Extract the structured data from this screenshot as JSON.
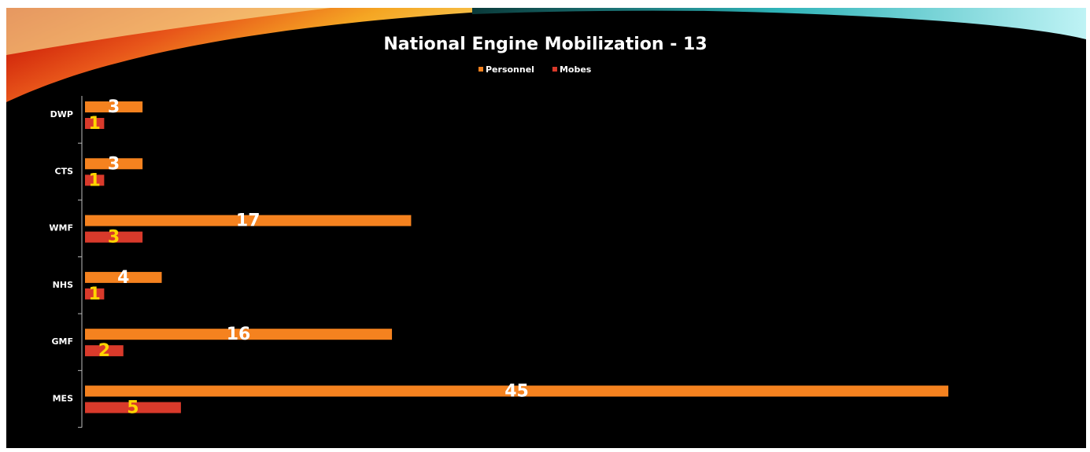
{
  "chart_data": {
    "type": "bar",
    "orientation": "horizontal",
    "title": "National Engine Mobilization - 13",
    "categories": [
      "DWP",
      "CTS",
      "WMF",
      "NHS",
      "GMF",
      "MES"
    ],
    "series": [
      {
        "name": "Personnel",
        "color": "#f5821f",
        "label_color": "#ffffff",
        "values": [
          3,
          3,
          17,
          4,
          16,
          45
        ]
      },
      {
        "name": "Mobes",
        "color": "#d93a2b",
        "label_color": "#ffd500",
        "values": [
          1,
          1,
          3,
          1,
          2,
          5
        ]
      }
    ],
    "legend": "top"
  }
}
